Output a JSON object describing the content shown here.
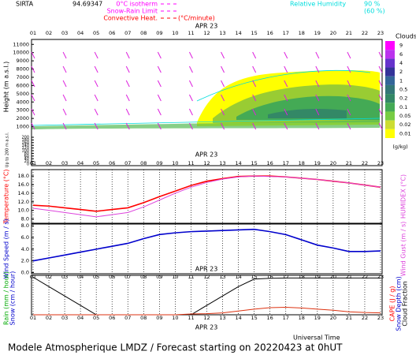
{
  "header": {
    "station": "SIRTA",
    "coords": "94.69347",
    "legend": [
      {
        "label": "0°C isotherm",
        "color": "#ff00ff"
      },
      {
        "label": "Snow-Rain Limit",
        "color": "#ff00ff"
      },
      {
        "label": "Convective Heat.",
        "color": "#ff0000"
      }
    ],
    "legend_unit": "(°C/minute)",
    "rh_label": "Relative Humidity",
    "rh_high": "90 %",
    "rh_low": "(60 %)"
  },
  "footer": "Modele Atmospherique LMDZ / Forecast starting on 20220423 at 0hUT",
  "x_title": "Universal Time",
  "chart_data": [
    {
      "type": "contour",
      "date": "APR 23",
      "categories": [
        "01",
        "02",
        "03",
        "04",
        "05",
        "06",
        "07",
        "08",
        "09",
        "10",
        "11",
        "12",
        "13",
        "14",
        "15",
        "16",
        "17",
        "18",
        "19",
        "20",
        "21",
        "22",
        "23"
      ],
      "y_label": "Height (m a.s.l.)",
      "ylim": [
        0,
        11600
      ],
      "yticks": [
        1000,
        2000,
        3000,
        4000,
        5000,
        6000,
        7000,
        8000,
        9000,
        10000,
        11000
      ],
      "lower_label": "Up to 200 m a.s.l.",
      "lower_ylim": [
        0,
        200
      ],
      "lower_yticks": [
        0,
        20,
        40,
        60,
        80,
        100,
        120,
        140,
        160,
        180,
        200
      ],
      "colorbar_title": "Clouds",
      "colorbar_unit": "(g/kg)",
      "colorbar": [
        {
          "label": "9",
          "color": "#ff00ff"
        },
        {
          "label": "6",
          "color": "#bb33ee"
        },
        {
          "label": "4",
          "color": "#6633cc"
        },
        {
          "label": "2",
          "color": "#333399"
        },
        {
          "label": "1",
          "color": "#336699"
        },
        {
          "label": "0.5",
          "color": "#337777"
        },
        {
          "label": "0.2",
          "color": "#338866"
        },
        {
          "label": "0.1",
          "color": "#44aa55"
        },
        {
          "label": "0.05",
          "color": "#77cc44"
        },
        {
          "label": "0.02",
          "color": "#ccdd33"
        },
        {
          "label": "0.01",
          "color": "#ffff00"
        }
      ]
    },
    {
      "type": "line",
      "date": "APR 23",
      "categories": [
        "01",
        "02",
        "03",
        "04",
        "05",
        "06",
        "07",
        "08",
        "09",
        "10",
        "11",
        "12",
        "13",
        "14",
        "15",
        "16",
        "17",
        "18",
        "19",
        "20",
        "21",
        "22",
        "23"
      ],
      "y_label": "Temperature (°C)",
      "y2_label": "HUMIDEX (°C)",
      "ylim": [
        7,
        19.5
      ],
      "yticks": [
        {
          "value": 8,
          "label": "8.0"
        },
        {
          "value": 10,
          "label": "10.0"
        },
        {
          "value": 12,
          "label": "12.0"
        },
        {
          "value": 14,
          "label": "14.0"
        },
        {
          "value": 16,
          "label": "16.0"
        },
        {
          "value": 18,
          "label": "18.0"
        }
      ],
      "series": [
        {
          "name": "Temperature",
          "color": "#ff0000",
          "values": [
            11.2,
            11.0,
            10.6,
            10.2,
            9.8,
            10.2,
            10.6,
            11.8,
            13.2,
            14.5,
            15.8,
            16.8,
            17.4,
            17.9,
            18.0,
            18.0,
            17.8,
            17.5,
            17.2,
            16.8,
            16.4,
            15.9,
            15.4
          ]
        },
        {
          "name": "HUMIDEX",
          "color": "#dd44dd",
          "values": [
            10.5,
            10.0,
            9.5,
            9.0,
            8.5,
            9.0,
            9.5,
            10.8,
            12.4,
            14.0,
            15.4,
            16.5,
            17.3,
            17.8,
            18.0,
            17.9,
            17.8,
            17.5,
            17.2,
            16.8,
            16.4,
            15.9,
            15.4
          ]
        }
      ]
    },
    {
      "type": "line",
      "categories": [
        "01",
        "02",
        "03",
        "04",
        "05",
        "06",
        "07",
        "08",
        "09",
        "10",
        "11",
        "12",
        "13",
        "14",
        "15",
        "16",
        "17",
        "18",
        "19",
        "20",
        "21",
        "22",
        "23"
      ],
      "y_label": "Wind Speed (m / s)",
      "y2_label": "Wind Gust (m / s)",
      "ylim": [
        -0.2,
        8.3
      ],
      "yticks": [
        {
          "value": 0,
          "label": "0.0"
        },
        {
          "value": 2,
          "label": "2.0"
        },
        {
          "value": 4,
          "label": "4.0"
        },
        {
          "value": 6,
          "label": "6.0"
        },
        {
          "value": 8,
          "label": "8.0"
        }
      ],
      "series": [
        {
          "name": "Wind Speed",
          "color": "#0000cc",
          "values": [
            2.0,
            2.5,
            3.0,
            3.5,
            4.0,
            4.5,
            5.0,
            5.8,
            6.5,
            6.8,
            7.0,
            7.1,
            7.2,
            7.3,
            7.4,
            7.0,
            6.5,
            5.6,
            4.7,
            4.2,
            3.6,
            3.6,
            3.7
          ]
        }
      ]
    },
    {
      "type": "line",
      "date": "APR 23",
      "categories": [
        "01",
        "02",
        "03",
        "04",
        "05",
        "06",
        "07",
        "08",
        "09",
        "10",
        "11",
        "12",
        "13",
        "14",
        "15",
        "16",
        "17",
        "18",
        "19",
        "20",
        "21",
        "22",
        "23"
      ],
      "y_labels": [
        "Rain (mm / hour)",
        "Snow (cm / hour)"
      ],
      "y2_labels": [
        "CAPE (J / g)",
        "Snow Depth (cm)",
        "Cloud Fraction"
      ],
      "ylim": [
        0,
        1.05
      ],
      "series": [
        {
          "name": "Cloud Fraction",
          "color": "#000000",
          "values": [
            1.0,
            0.75,
            0.5,
            0.25,
            0,
            0,
            0,
            0,
            0,
            0,
            0,
            0.25,
            0.5,
            0.75,
            0.95,
            0.97,
            0.98,
            0.98,
            0.98,
            0.98,
            0.98,
            0.98,
            0.98
          ]
        },
        {
          "name": "CAPE",
          "color": "#dd3311",
          "values": [
            0,
            0,
            0,
            0,
            0,
            0,
            0,
            0,
            0,
            0,
            0.02,
            0.03,
            0.05,
            0.1,
            0.15,
            0.19,
            0.2,
            0.18,
            0.15,
            0.12,
            0.08,
            0.06,
            0.05
          ]
        }
      ]
    }
  ]
}
